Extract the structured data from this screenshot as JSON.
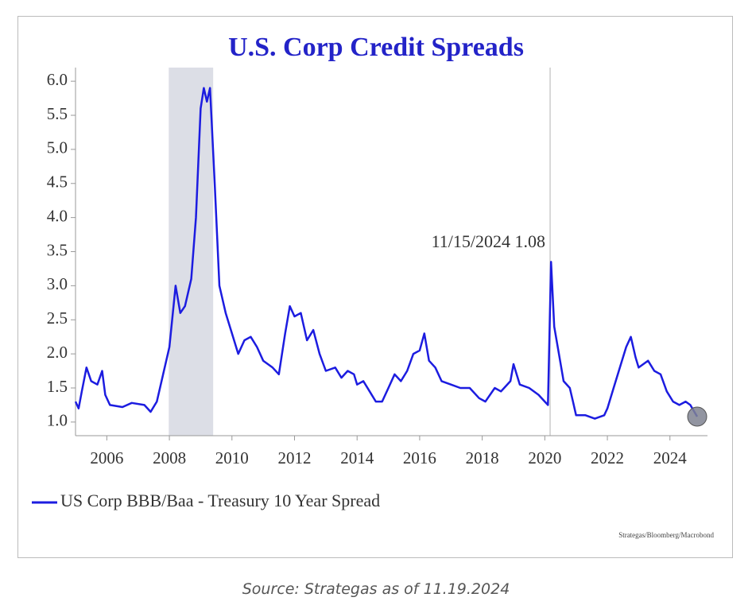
{
  "chart_data": {
    "type": "line",
    "title": "U.S. Corp Credit Spreads",
    "credit": "Strategas/Bloomberg/Macrobond",
    "annotation": {
      "label": "11/15/2024 1.08",
      "value": 1.08
    },
    "shaded_regions": [
      [
        2007.98,
        2009.4
      ]
    ],
    "vlines": [
      2020.17
    ],
    "xlim": [
      2005,
      2025.2
    ],
    "xticks": [
      2006,
      2008,
      2010,
      2012,
      2014,
      2016,
      2018,
      2020,
      2022,
      2024
    ],
    "ylim": [
      0.8,
      6.2
    ],
    "yticks": [
      {
        "value": 1,
        "label": "1.0"
      },
      {
        "value": 1.5,
        "label": "1.5"
      },
      {
        "value": 2,
        "label": "2.0"
      },
      {
        "value": 2.5,
        "label": "2.5"
      },
      {
        "value": 3,
        "label": "3.0"
      },
      {
        "value": 3.5,
        "label": "3.5"
      },
      {
        "value": 4,
        "label": "4.0"
      },
      {
        "value": 4.5,
        "label": "4.5"
      },
      {
        "value": 5,
        "label": "5.0"
      },
      {
        "value": 5.5,
        "label": "5.5"
      },
      {
        "value": 6,
        "label": "6.0"
      }
    ],
    "legend": "bottom-left",
    "x": [
      2005.0,
      2005.1,
      2005.2,
      2005.35,
      2005.5,
      2005.7,
      2005.85,
      2005.95,
      2006.1,
      2006.5,
      2006.8,
      2007.2,
      2007.4,
      2007.6,
      2007.8,
      2008.0,
      2008.2,
      2008.35,
      2008.5,
      2008.7,
      2008.85,
      2009.0,
      2009.1,
      2009.2,
      2009.3,
      2009.45,
      2009.6,
      2009.8,
      2010.0,
      2010.2,
      2010.4,
      2010.6,
      2010.8,
      2011.0,
      2011.3,
      2011.5,
      2011.7,
      2011.85,
      2012.0,
      2012.2,
      2012.4,
      2012.6,
      2012.8,
      2013.0,
      2013.3,
      2013.5,
      2013.7,
      2013.9,
      2014.0,
      2014.2,
      2014.4,
      2014.6,
      2014.8,
      2015.0,
      2015.2,
      2015.4,
      2015.6,
      2015.8,
      2016.0,
      2016.15,
      2016.3,
      2016.5,
      2016.7,
      2017.0,
      2017.3,
      2017.6,
      2017.9,
      2018.1,
      2018.4,
      2018.6,
      2018.9,
      2019.0,
      2019.2,
      2019.5,
      2019.8,
      2020.0,
      2020.1,
      2020.2,
      2020.3,
      2020.45,
      2020.6,
      2020.8,
      2020.9,
      2021.0,
      2021.3,
      2021.6,
      2021.9,
      2022.0,
      2022.2,
      2022.4,
      2022.6,
      2022.75,
      2022.9,
      2023.0,
      2023.3,
      2023.5,
      2023.7,
      2023.9,
      2024.1,
      2024.3,
      2024.5,
      2024.65,
      2024.87
    ],
    "series": [
      {
        "name": "US Corp BBB/Baa - Treasury 10 Year Spread",
        "color": "#1c1ce0",
        "values": [
          1.3,
          1.2,
          1.45,
          1.8,
          1.6,
          1.55,
          1.75,
          1.4,
          1.25,
          1.22,
          1.28,
          1.25,
          1.15,
          1.3,
          1.7,
          2.1,
          3.0,
          2.6,
          2.7,
          3.1,
          4.0,
          5.6,
          5.9,
          5.7,
          5.9,
          4.5,
          3.0,
          2.6,
          2.3,
          2.0,
          2.2,
          2.25,
          2.1,
          1.9,
          1.8,
          1.7,
          2.3,
          2.7,
          2.55,
          2.6,
          2.2,
          2.35,
          2.0,
          1.75,
          1.8,
          1.65,
          1.75,
          1.7,
          1.55,
          1.6,
          1.45,
          1.3,
          1.3,
          1.5,
          1.7,
          1.6,
          1.75,
          2.0,
          2.05,
          2.3,
          1.9,
          1.8,
          1.6,
          1.55,
          1.5,
          1.5,
          1.35,
          1.3,
          1.5,
          1.45,
          1.6,
          1.85,
          1.55,
          1.5,
          1.4,
          1.3,
          1.25,
          3.35,
          2.4,
          2.0,
          1.6,
          1.5,
          1.3,
          1.1,
          1.1,
          1.05,
          1.1,
          1.2,
          1.5,
          1.8,
          2.1,
          2.25,
          1.95,
          1.8,
          1.9,
          1.75,
          1.7,
          1.45,
          1.3,
          1.25,
          1.3,
          1.25,
          1.08
        ]
      }
    ]
  },
  "source_caption": "Source: Strategas as of 11.19.2024"
}
